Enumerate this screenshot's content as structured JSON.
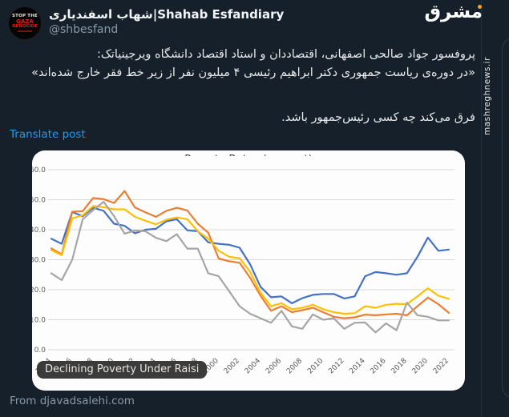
{
  "header": {
    "display_name": "شهاب اسفندیاری|Shahab Esfandiary",
    "handle": "@shbesfand",
    "avatar_text": {
      "line1": "STOP THE",
      "line2": "GAZA",
      "line3": "GENOCIDE"
    }
  },
  "watermark": {
    "logo": "مشرق",
    "site": "mashreghnews.ir"
  },
  "tweet": {
    "line1": "پروفسور جواد صالحی اصفهانی، اقتصاددان و استاد اقتصاد دانشگاه ویرجینیاتک:",
    "line2": "«در دوره‌ی ریاست جمهوری دکتر ابراهیم رئیسی ۴ میلیون نفر از زیر خط فقر خارج شده‌اند»",
    "line3": "فرق می‌کند چه کسی رئیس‌جمهور باشد.",
    "translate_label": "Translate post"
  },
  "card": {
    "overlay_label": "Declining Poverty Under Raisi",
    "attribution": "From djavadsalehi.com"
  },
  "chart_data": {
    "type": "line",
    "title": "Poverty Rates (percent)",
    "title_note": "title is partially cropped at top of image",
    "ylim": [
      0,
      60
    ],
    "grid": true,
    "legend": "none",
    "y_ticks": [
      "60.0",
      "50.0",
      "40.0",
      "30.0",
      "20.0",
      "10.0",
      "0.0"
    ],
    "x_tick_labels": [
      "1984",
      "1986",
      "1988",
      "1990",
      "1992",
      "1994",
      "1996",
      "1998",
      "2000",
      "2002",
      "2004",
      "2006",
      "2008",
      "2010",
      "2012",
      "2014",
      "2016",
      "2018",
      "2020",
      "2022"
    ],
    "x": [
      1984,
      1985,
      1986,
      1987,
      1988,
      1989,
      1990,
      1991,
      1992,
      1993,
      1994,
      1995,
      1996,
      1997,
      1998,
      1999,
      2000,
      2001,
      2002,
      2003,
      2004,
      2005,
      2006,
      2007,
      2008,
      2009,
      2010,
      2011,
      2012,
      2013,
      2014,
      2015,
      2016,
      2017,
      2018,
      2019,
      2020,
      2021,
      2022
    ],
    "series": [
      {
        "name": "blue",
        "color": "#4472c4",
        "values": [
          37.0,
          35.3,
          45.9,
          44.5,
          47.3,
          46.3,
          42.0,
          41.3,
          38.8,
          40.0,
          40.3,
          42.8,
          43.5,
          39.8,
          39.5,
          35.8,
          35.3,
          35.0,
          34.0,
          28.5,
          21.0,
          17.5,
          17.8,
          15.5,
          17.2,
          18.3,
          18.6,
          18.6,
          17.1,
          17.8,
          24.5,
          25.9,
          25.5,
          25.0,
          25.5,
          31.0,
          37.4,
          33.0,
          33.4
        ]
      },
      {
        "name": "orange",
        "color": "#ed7d31",
        "values": [
          33.8,
          31.8,
          46.0,
          46.2,
          50.6,
          50.2,
          48.9,
          52.9,
          47.4,
          45.8,
          44.3,
          46.3,
          47.3,
          46.4,
          42.0,
          39.0,
          30.4,
          29.5,
          29.0,
          24.0,
          18.0,
          13.0,
          14.5,
          12.5,
          13.2,
          14.0,
          12.5,
          11.0,
          10.5,
          10.8,
          11.7,
          11.5,
          11.8,
          12.0,
          11.5,
          14.5,
          17.4,
          15.2,
          12.3
        ]
      },
      {
        "name": "yellow",
        "color": "#ffc000",
        "values": [
          33.2,
          31.5,
          43.8,
          44.8,
          47.9,
          47.5,
          46.8,
          46.8,
          44.3,
          43.0,
          41.8,
          43.3,
          44.1,
          43.5,
          39.5,
          37.0,
          33.0,
          31.0,
          30.5,
          26.0,
          19.0,
          14.5,
          15.5,
          13.5,
          14.0,
          15.0,
          13.5,
          12.5,
          12.0,
          12.2,
          14.5,
          14.0,
          15.0,
          15.3,
          15.2,
          17.8,
          20.5,
          18.0,
          17.0
        ]
      },
      {
        "name": "gray",
        "color": "#a5a5a5",
        "values": [
          25.5,
          23.2,
          30.0,
          43.5,
          46.5,
          49.3,
          44.5,
          38.7,
          39.7,
          39.5,
          37.3,
          36.2,
          38.5,
          33.7,
          33.7,
          25.5,
          24.5,
          19.5,
          14.5,
          12.0,
          10.5,
          9.0,
          13.0,
          7.8,
          7.0,
          11.8,
          10.0,
          10.5,
          7.0,
          9.0,
          9.1,
          5.8,
          8.8,
          6.5,
          15.7,
          11.5,
          11.0,
          9.8,
          9.8
        ]
      }
    ]
  }
}
